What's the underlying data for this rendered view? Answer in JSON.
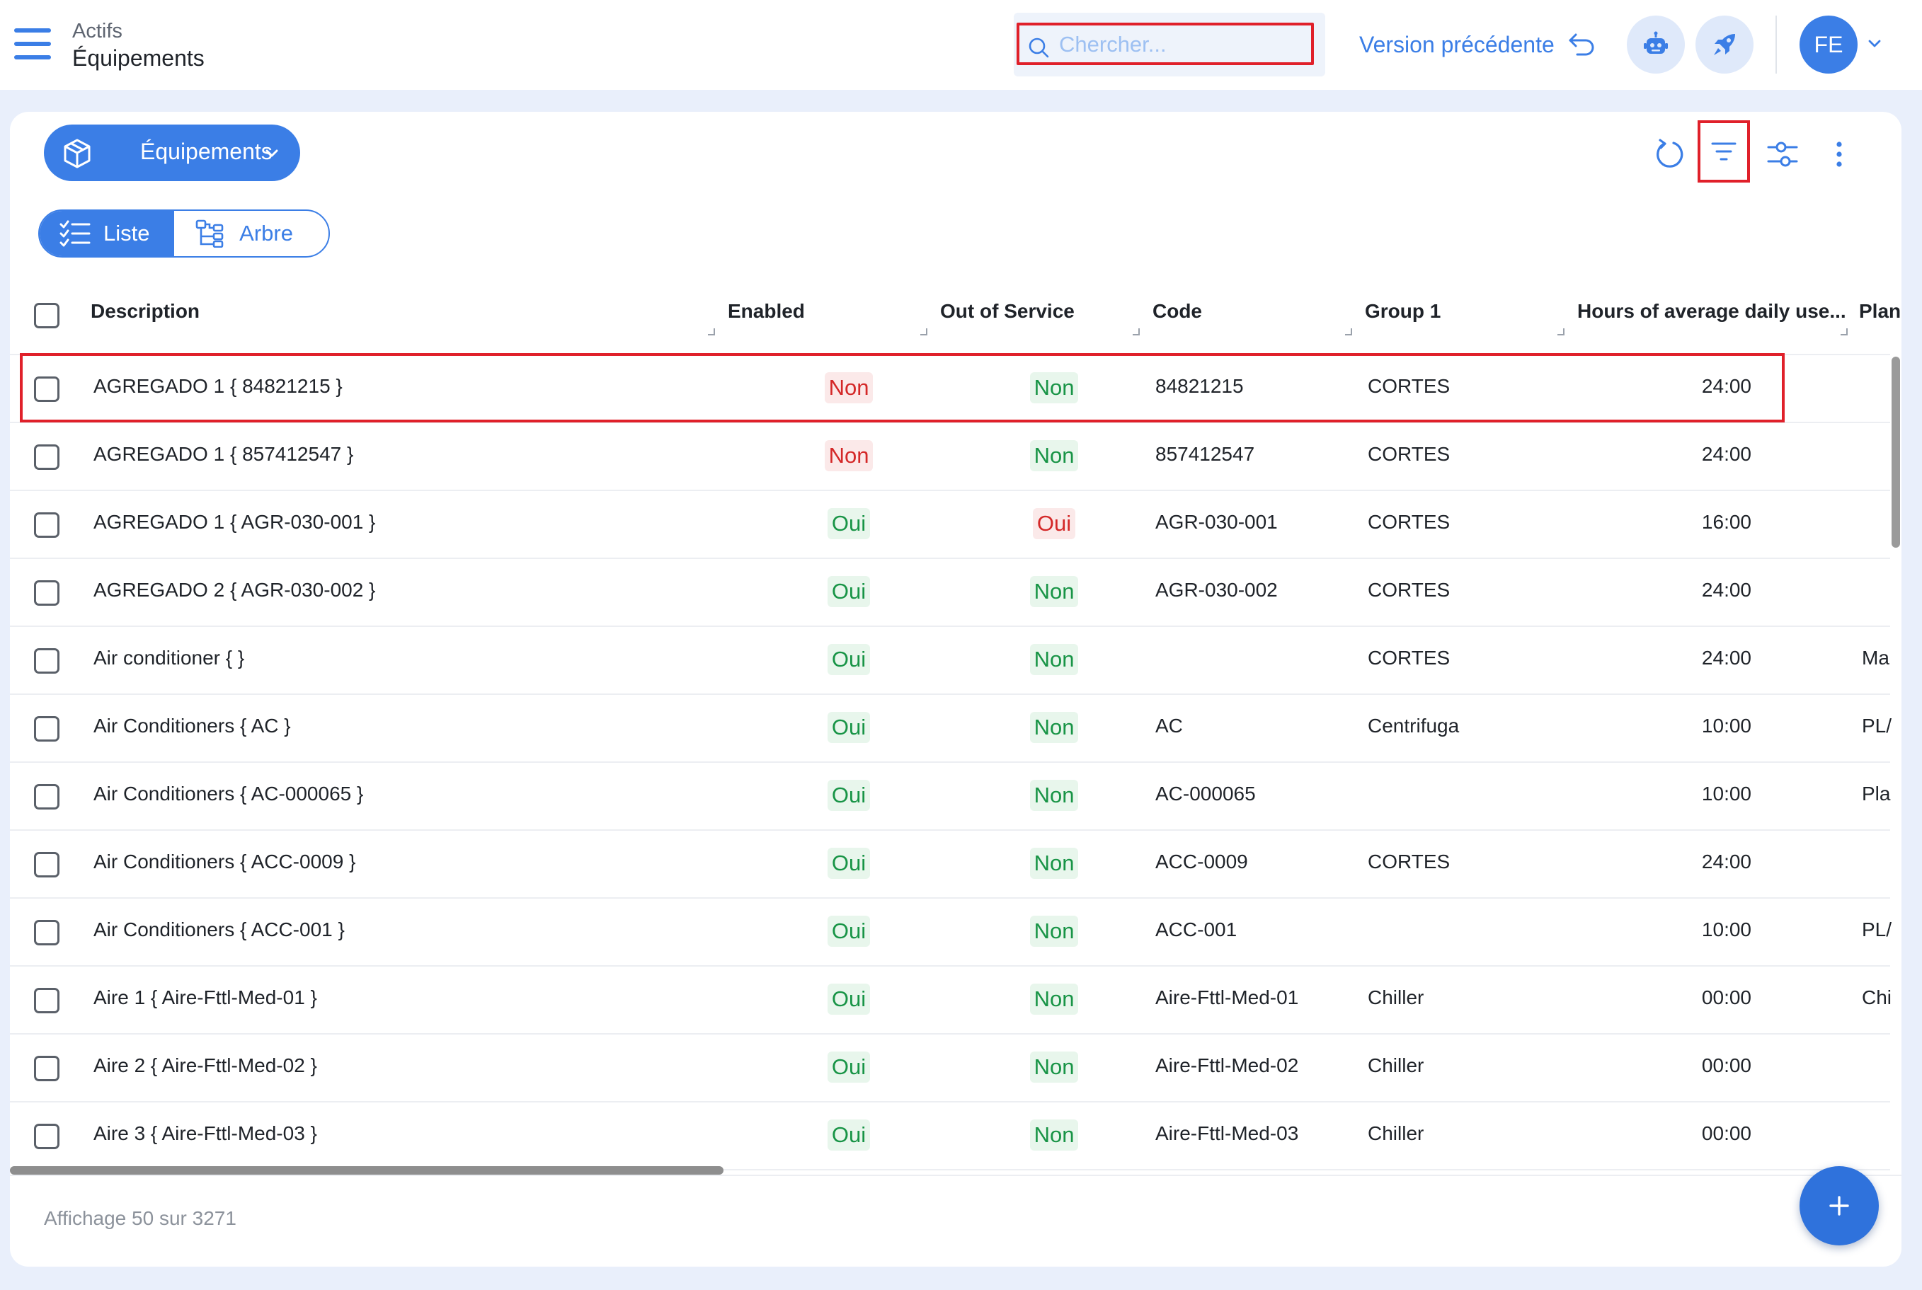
{
  "header": {
    "breadcrumb_parent": "Actifs",
    "page_title": "Équipements",
    "search_placeholder": "Chercher...",
    "search_value": "",
    "prev_version_label": "Version précédente",
    "avatar_initials": "FE"
  },
  "toolbar": {
    "type_selector_label": "Équipements",
    "view_list_label": "Liste",
    "view_tree_label": "Arbre",
    "active_view": "Liste"
  },
  "table": {
    "columns": [
      "Description",
      "Enabled",
      "Out of Service",
      "Code",
      "Group 1",
      "Hours of average daily use...",
      "Plan"
    ],
    "rows": [
      {
        "description": "AGREGADO 1 { 84821215 }",
        "enabled": "Non",
        "out_of_service": "Non",
        "code": "84821215",
        "group": "CORTES",
        "hours": "24:00",
        "plan": ""
      },
      {
        "description": "AGREGADO 1 { 857412547 }",
        "enabled": "Non",
        "out_of_service": "Non",
        "code": "857412547",
        "group": "CORTES",
        "hours": "24:00",
        "plan": ""
      },
      {
        "description": "AGREGADO 1 { AGR-030-001 }",
        "enabled": "Oui",
        "out_of_service": "Oui",
        "code": "AGR-030-001",
        "group": "CORTES",
        "hours": "16:00",
        "plan": ""
      },
      {
        "description": "AGREGADO 2 { AGR-030-002 }",
        "enabled": "Oui",
        "out_of_service": "Non",
        "code": "AGR-030-002",
        "group": "CORTES",
        "hours": "24:00",
        "plan": ""
      },
      {
        "description": "Air conditioner { }",
        "enabled": "Oui",
        "out_of_service": "Non",
        "code": "",
        "group": "CORTES",
        "hours": "24:00",
        "plan": "Ma"
      },
      {
        "description": "Air Conditioners { AC }",
        "enabled": "Oui",
        "out_of_service": "Non",
        "code": "AC",
        "group": "Centrifuga",
        "hours": "10:00",
        "plan": "PL/"
      },
      {
        "description": "Air Conditioners { AC-000065 }",
        "enabled": "Oui",
        "out_of_service": "Non",
        "code": "AC-000065",
        "group": "",
        "hours": "10:00",
        "plan": "Pla"
      },
      {
        "description": "Air Conditioners { ACC-0009 }",
        "enabled": "Oui",
        "out_of_service": "Non",
        "code": "ACC-0009",
        "group": "CORTES",
        "hours": "24:00",
        "plan": ""
      },
      {
        "description": "Air Conditioners { ACC-001 }",
        "enabled": "Oui",
        "out_of_service": "Non",
        "code": "ACC-001",
        "group": "",
        "hours": "10:00",
        "plan": "PL/"
      },
      {
        "description": "Aire 1 { Aire-Fttl-Med-01 }",
        "enabled": "Oui",
        "out_of_service": "Non",
        "code": "Aire-Fttl-Med-01",
        "group": "Chiller",
        "hours": "00:00",
        "plan": "Chi"
      },
      {
        "description": "Aire 2 { Aire-Fttl-Med-02 }",
        "enabled": "Oui",
        "out_of_service": "Non",
        "code": "Aire-Fttl-Med-02",
        "group": "Chiller",
        "hours": "00:00",
        "plan": ""
      },
      {
        "description": "Aire 3 { Aire-Fttl-Med-03 }",
        "enabled": "Oui",
        "out_of_service": "Non",
        "code": "Aire-Fttl-Med-03",
        "group": "Chiller",
        "hours": "00:00",
        "plan": ""
      }
    ]
  },
  "footer": {
    "count_text": "Affichage 50 sur 3271"
  },
  "colors": {
    "accent": "#3b7ee6",
    "yes_green": "#189446",
    "no_red": "#d42828",
    "highlight_red": "#e0202a",
    "page_bg": "#e9effb"
  },
  "icons": {
    "menu": "hamburger-icon",
    "search": "search-icon",
    "undo": "undo-arrow-icon",
    "bot": "robot-icon",
    "rocket": "rocket-icon",
    "refresh": "refresh-icon",
    "filter": "filter-icon",
    "columns": "sliders-icon",
    "more": "more-vertical-icon",
    "add": "plus-icon"
  }
}
